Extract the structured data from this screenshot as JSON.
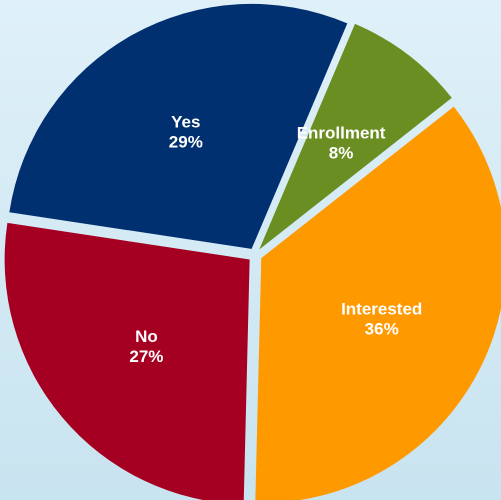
{
  "chart_data": {
    "type": "pie",
    "categories": [
      "Enrollment",
      "Interested",
      "No",
      "Yes"
    ],
    "values": [
      8,
      36,
      27,
      29
    ],
    "value_labels": [
      "8%",
      "36%",
      "27%",
      "29%"
    ],
    "colors": [
      "#6b8e23",
      "#ff9900",
      "#a50021",
      "#003070"
    ],
    "title": "",
    "exploded": true,
    "background_color": "#cde6f2"
  }
}
